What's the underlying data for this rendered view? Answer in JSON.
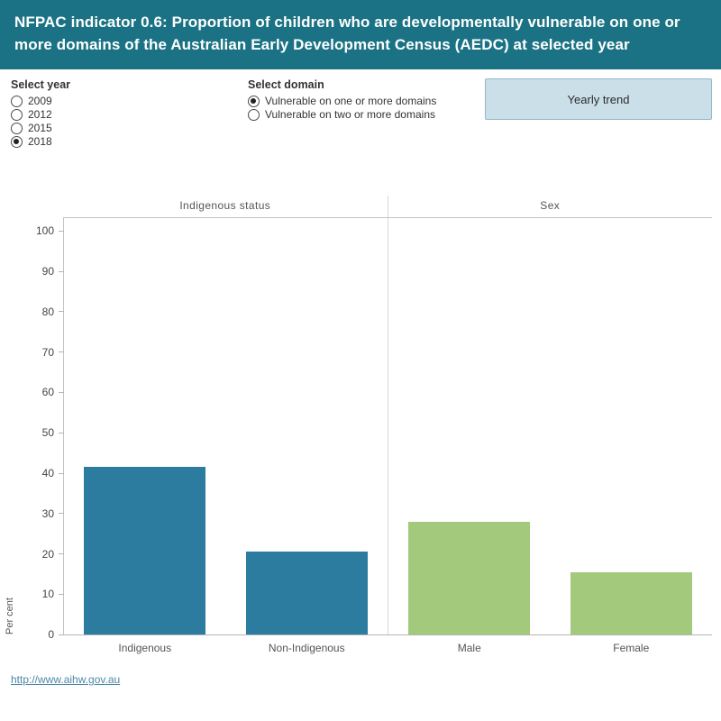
{
  "header": {
    "title": "NFPAC indicator 0.6: Proportion of children who are developmentally vulnerable on one or more domains of the Australian Early Development Census (AEDC) at selected year",
    "bg_color": "#1b7284"
  },
  "controls": {
    "year": {
      "label": "Select year",
      "options": [
        "2009",
        "2012",
        "2015",
        "2018"
      ],
      "selected": "2018"
    },
    "domain": {
      "label": "Select domain",
      "options": [
        "Vulnerable on one or more domains",
        "Vulnerable on two or more domains"
      ],
      "selected": "Vulnerable on one or more domains"
    },
    "trend_button_label": "Yearly trend"
  },
  "chart_data": {
    "type": "bar",
    "ylabel": "Per cent",
    "ylim": [
      0,
      100
    ],
    "yticks": [
      0,
      10,
      20,
      30,
      40,
      50,
      60,
      70,
      80,
      90,
      100
    ],
    "grid": false,
    "panels": [
      {
        "title": "Indigenous status",
        "categories": [
          "Indigenous",
          "Non-Indigenous"
        ],
        "values": [
          41.5,
          20.5
        ],
        "color": "#2b7c9e"
      },
      {
        "title": "Sex",
        "categories": [
          "Male",
          "Female"
        ],
        "values": [
          28,
          15.5
        ],
        "color": "#a2c97c"
      }
    ]
  },
  "footer": {
    "link": "http://www.aihw.gov.au"
  }
}
